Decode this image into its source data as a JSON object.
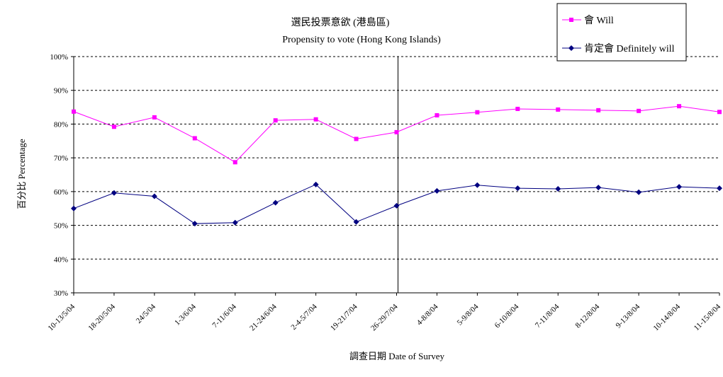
{
  "chart_data": {
    "type": "line",
    "title": "選民投票意欲 (港島區)",
    "subtitle": "Propensity to vote (Hong Kong Islands)",
    "xlabel": "調查日期 Date of Survey",
    "ylabel": "百分比 Percentage",
    "ylim": [
      30,
      100
    ],
    "yticks": [
      "30%",
      "40%",
      "50%",
      "60%",
      "70%",
      "80%",
      "90%",
      "100%"
    ],
    "categories": [
      "10-13/5/04",
      "18-20/5/04",
      "24/5/04",
      "1-3/6/04",
      "7-11/6/04",
      "21-24/6/04",
      "2-4-5/7/04",
      "19-21/7/04",
      "26-29/7/04",
      "4-8/8/04",
      "5-9/8/04",
      "6-10/8/04",
      "7-11/8/04",
      "8-12/8/04",
      "9-13/8/04",
      "10-14/8/04",
      "11-15/8/04"
    ],
    "series": [
      {
        "name": "會 Will",
        "color": "#ff00ff",
        "marker": "square",
        "values": [
          83.7,
          79.2,
          82.0,
          75.8,
          68.7,
          81.1,
          81.4,
          75.6,
          77.6,
          82.6,
          83.5,
          84.5,
          84.3,
          84.1,
          83.9,
          85.3,
          83.6
        ]
      },
      {
        "name": "肯定會 Definitely will",
        "color": "#000080",
        "marker": "diamond",
        "values": [
          55.0,
          59.6,
          58.6,
          50.5,
          50.8,
          56.7,
          62.1,
          51.0,
          55.8,
          60.2,
          61.9,
          61.0,
          60.8,
          61.2,
          59.8,
          61.4,
          61.0
        ]
      }
    ],
    "vertical_line_after_category": "26-29/7/04",
    "grid": "horizontal dashed",
    "legend": "top-right"
  }
}
